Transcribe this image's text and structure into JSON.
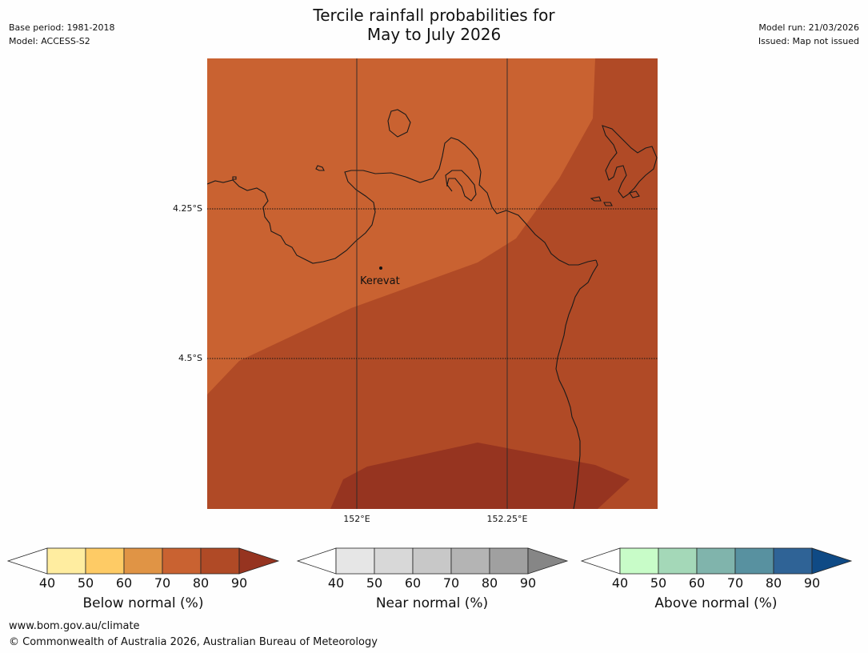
{
  "header": {
    "title_line1": "Tercile rainfall probabilities for",
    "title_line2": "May to July 2026",
    "base_period": "Base period: 1981-2018",
    "model": "Model: ACCESS-S2",
    "model_run": "Model run: 21/03/2026",
    "issued": "Issued: Map not issued"
  },
  "map": {
    "place_label": "Kerevat",
    "lat_labels": [
      "4.25°S",
      "4.5°S"
    ],
    "lon_labels": [
      "152°E",
      "152.25°E"
    ],
    "category": "Below normal",
    "probability_zones_percent": [
      "70-80",
      "80-90",
      "90+"
    ]
  },
  "legends": [
    {
      "label": "Below normal (%)",
      "ticks": [
        "40",
        "50",
        "60",
        "70",
        "80",
        "90"
      ],
      "colors": [
        "#ffffff",
        "#ffeda0",
        "#fecb65",
        "#e09445",
        "#c96231",
        "#b04a26",
        "#963420"
      ]
    },
    {
      "label": "Near normal (%)",
      "ticks": [
        "40",
        "50",
        "60",
        "70",
        "80",
        "90"
      ],
      "colors": [
        "#ffffff",
        "#e6e6e6",
        "#d8d8d8",
        "#c8c8c8",
        "#b4b4b4",
        "#a0a0a0",
        "#868686"
      ]
    },
    {
      "label": "Above normal (%)",
      "ticks": [
        "40",
        "50",
        "60",
        "70",
        "80",
        "90"
      ],
      "colors": [
        "#ffffff",
        "#c8fcc8",
        "#a4d8b8",
        "#80b4ac",
        "#5891a0",
        "#2f6396",
        "#0f4a85"
      ]
    }
  ],
  "footer": {
    "website": "www.bom.gov.au/climate",
    "copyright": "© Commonwealth of Australia 2026, Australian Bureau of Meteorology"
  },
  "colors": {
    "zone_70_80": "#c96231",
    "zone_80_90": "#b04a26",
    "zone_90_plus": "#963420",
    "coastline": "#1a1a1a",
    "gridline": "#2a2a2a"
  }
}
